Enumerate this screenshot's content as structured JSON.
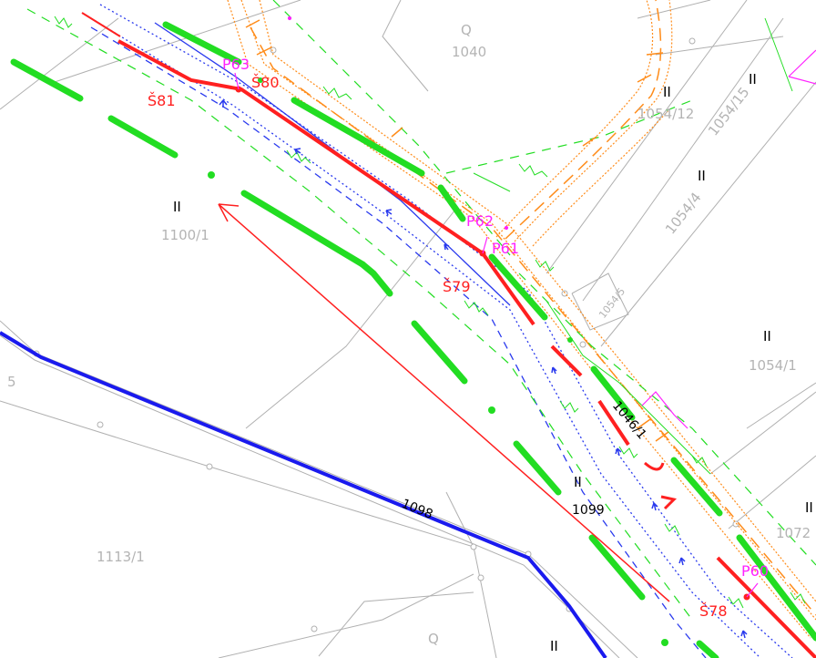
{
  "map": {
    "colors": {
      "background": "#ffffff",
      "cadastre_line": "#b0b0b0",
      "parcel_label": "#b4b4b4",
      "green_line": "#22dd22",
      "red_line": "#ff2020",
      "blue_line": "#1a1aee",
      "orange_line": "#ff8c1a",
      "magenta": "#ff22ff"
    },
    "parcel_labels": [
      {
        "id": "p1040",
        "text": "1040"
      },
      {
        "id": "p1100-1",
        "text": "1100/1"
      },
      {
        "id": "p1113-1",
        "text": "1113/1"
      },
      {
        "id": "p1054-12",
        "text": "1054/12"
      },
      {
        "id": "p1054-4",
        "text": "1054/4"
      },
      {
        "id": "p1054-15",
        "text": "1054/15"
      },
      {
        "id": "p1054-5",
        "text": "1054/5"
      },
      {
        "id": "p1054-1",
        "text": "1054/1"
      },
      {
        "id": "p1072",
        "text": "1072"
      },
      {
        "id": "p5",
        "text": "5"
      }
    ],
    "class_labels": [
      {
        "id": "c-ii-1100",
        "text": "II"
      },
      {
        "id": "c-ii-1054-12",
        "text": "II"
      },
      {
        "id": "c-ii-top-right",
        "text": "II"
      },
      {
        "id": "c-ii-1054-4",
        "text": "II"
      },
      {
        "id": "c-ii-1054-1",
        "text": "II"
      },
      {
        "id": "c-ii-1099",
        "text": "II"
      },
      {
        "id": "c-ii-1072",
        "text": "II"
      },
      {
        "id": "c-ii-bottom",
        "text": "II"
      },
      {
        "id": "c-q-1040",
        "text": "Q"
      },
      {
        "id": "c-q-bottom",
        "text": "Q"
      }
    ],
    "road_labels": [
      {
        "id": "r1099",
        "text": "1099"
      },
      {
        "id": "r1098",
        "text": "1098"
      },
      {
        "id": "r1046-1",
        "text": "1046/1"
      }
    ],
    "point_labels": [
      {
        "id": "s81",
        "text": "Š81",
        "kind": "red"
      },
      {
        "id": "s80",
        "text": "Š80",
        "kind": "red"
      },
      {
        "id": "s79",
        "text": "Š79",
        "kind": "red"
      },
      {
        "id": "s78",
        "text": "Š78",
        "kind": "red"
      },
      {
        "id": "p63",
        "text": "P63",
        "kind": "magenta"
      },
      {
        "id": "p62",
        "text": "P62",
        "kind": "magenta"
      },
      {
        "id": "p61",
        "text": "P61",
        "kind": "magenta"
      },
      {
        "id": "p60",
        "text": "P60",
        "kind": "magenta"
      }
    ]
  }
}
